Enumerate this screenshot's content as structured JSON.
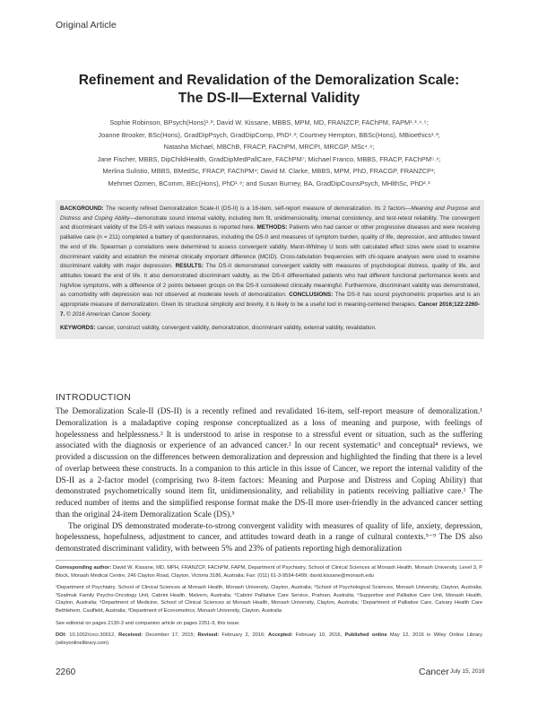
{
  "header": {
    "article_type": "Original Article"
  },
  "title": {
    "line1": "Refinement and Revalidation of the Demoralization Scale:",
    "line2": "The DS-II—External Validity"
  },
  "authors": [
    "Sophie Robinson, BPsych(Hons)¹˒²; David W. Kissane, MBBS, MPM, MD, FRANZCP, FAChPM, FAPM¹˒³˒⁴˒⁵;",
    "Joanne Brooker, BSc(Hons), GradDipPsych, GradDipComp, PhD¹˒³; Courtney Hempton, BBSc(Hons), MBioethics¹˒³;",
    "Natasha Michael, MBChB, FRACP, FAChPM, MRCPI, MRCGP, MSc⁴˒⁶;",
    "Jane Fischer, MBBS, DipChildHealth, GradDipMedPallCare, FAChPM⁷; Michael Franco, MBBS, FRACP, FAChPM⁵˒⁶;",
    "Merlina Sulistio, MBBS, BMedSc, FRACP, FAChPM⁴; David M. Clarke, MBBS, MPM, PhD, FRACGP, FRANZCP¹;",
    "Mehmet Ozmen, BComm, BEc(Hons), PhD¹˒⁸; and Susan Burney, BA, GradDipCounsPsych, MHlthSc, PhD²˒³"
  ],
  "abstract": {
    "background_label": "BACKGROUND:",
    "background": " The recently refined Demoralization Scale-II (DS-II) is a 16-item, self-report measure of demoralization. Its 2 factors—",
    "factors_italic": "Meaning and Purpose and Distress and Coping Ability",
    "background2": "—demonstrate sound internal validity, including item fit, unidimensionality, internal consistency, and test-retest reliability. The convergent and discriminant validity of the DS-II with various measures is reported here. ",
    "methods_label": "METHODS:",
    "methods": " Patients who had cancer or other progressive diseases and were receiving palliative care (n = 211) completed a battery of questionnaires, including the DS-II and measures of symptom burden, quality of life, depression, and attitudes toward the end of life. Spearman ρ correlations were determined to assess convergent validity. Mann-Whitney U tests with calculated effect sizes were used to examine discriminant validity and establish the minimal clinically important difference (MCID). Cross-tabulation frequencies with chi-square analyses were used to examine discriminant validity with major depression. ",
    "results_label": "RESULTS:",
    "results": " The DS-II demonstrated convergent validity with measures of psychological distress, quality of life, and attitudes toward the end of life. It also demonstrated discriminant validity, as the DS-II differentiated patients who had different functional performance levels and high/low symptoms, with a difference of 2 points between groups on the DS-II considered clinically meaningful. Furthermore, discriminant validity was demonstrated, as comorbidity with depression was not observed at moderate levels of demoralization. ",
    "conclusions_label": "CONCLUSIONS:",
    "conclusions": " The DS-II has sound psychometric properties and is an appropriate measure of demoralization. Given its structural simplicity and brevity, it is likely to be a useful tool in meaning-centered therapies. ",
    "citation": "Cancer 2016;122:2260-7.",
    "copyright": " © 2016 American Cancer Society.",
    "keywords_label": "KEYWORDS:",
    "keywords": " cancer, construct validity, convergent validity, demoralization, discriminant validity, external validity, revalidation."
  },
  "intro": {
    "heading": "INTRODUCTION",
    "paragraphs": [
      "The Demoralization Scale-II (DS-II) is a recently refined and revalidated 16-item, self-report measure of demoralization.¹ Demoralization is a maladaptive coping response conceptualized as a loss of meaning and purpose, with feelings of hopelessness and helplessness.² It is understood to arise in response to a stressful event or situation, such as the suffering associated with the diagnosis or experience of an advanced cancer.² In our recent systematic³ and conceptual⁴ reviews, we provided a discussion on the differences between demoralization and depression and highlighted the finding that there is a level of overlap between these constructs. In a companion to this article in this issue of Cancer, we report the internal validity of the DS-II as a 2-factor model (comprising two 8-item factors: Meaning and Purpose and Distress and Coping Ability) that demonstrated psychometrically sound item fit, unidimensionality, and reliability in patients receiving palliative care.¹ The reduced number of items and the simplified response format make the DS-II more user-friendly in the advanced cancer setting than the original 24-item Demoralization Scale (DS).⁵",
      "The original DS demonstrated moderate-to-strong convergent validity with measures of quality of life, anxiety, depression, hopelessness, hopefulness, adjustment to cancer, and attitudes toward death in a range of cultural contexts.⁵⁻⁹ The DS also demonstrated discriminant validity, with between 5% and 23% of patients reporting high demoralization"
    ]
  },
  "notes": {
    "corresponding_label": "Corresponding author:",
    "corresponding": " David W. Kissane, MD, MPH, FRANZCP, FAChPM, FAPM, Department of Psychiatry, School of Clinical Sciences at Monash Health, Monash University, Level 3, P Block, Monash Medical Centre, 246 Clayton Road, Clayton, Victoria 3186, Australia; Fax: (011) 61-3-9594-6499; david.kissane@monash.edu",
    "affiliations": "¹Department of Psychiatry, School of Clinical Sciences at Monash Health, Monash University, Clayton, Australia; ²School of Psychological Sciences, Monash University, Clayton, Australia; ³Szalmuk Family Psycho-Oncology Unit, Cabrini Health, Malvern, Australia; ⁴Cabrini Palliative Care Service, Prahran, Australia; ⁵Supportive and Palliative Care Unit, Monash Health, Clayton, Australia; ⁶Department of Medicine, School of Clinical Sciences at Monash Health, Monash University, Clayton, Australia; ⁷Department of Palliative Care, Calvary Health Care Bethlehem, Caulfield, Australia; ⁸Department of Econometrics, Monash University, Clayton, Australia",
    "editorial": "See editorial on pages 2130-3 and companion article on pages 2251-9, this issue.",
    "doi_label": "DOI:",
    "doi": " 10.1002/cncr.30012, ",
    "received_label": "Received:",
    "received": " December 17, 2015; ",
    "revised_label": "Revised:",
    "revised": " February 2, 2016; ",
    "accepted_label": "Accepted:",
    "accepted": " February 10, 2016, ",
    "published_label": "Published online",
    "published": " May 12, 2016 in Wiley Online Library (wileyonlinelibrary.com)"
  },
  "footer": {
    "page": "2260",
    "journal": "Cancer",
    "date": "July 15, 2016"
  }
}
